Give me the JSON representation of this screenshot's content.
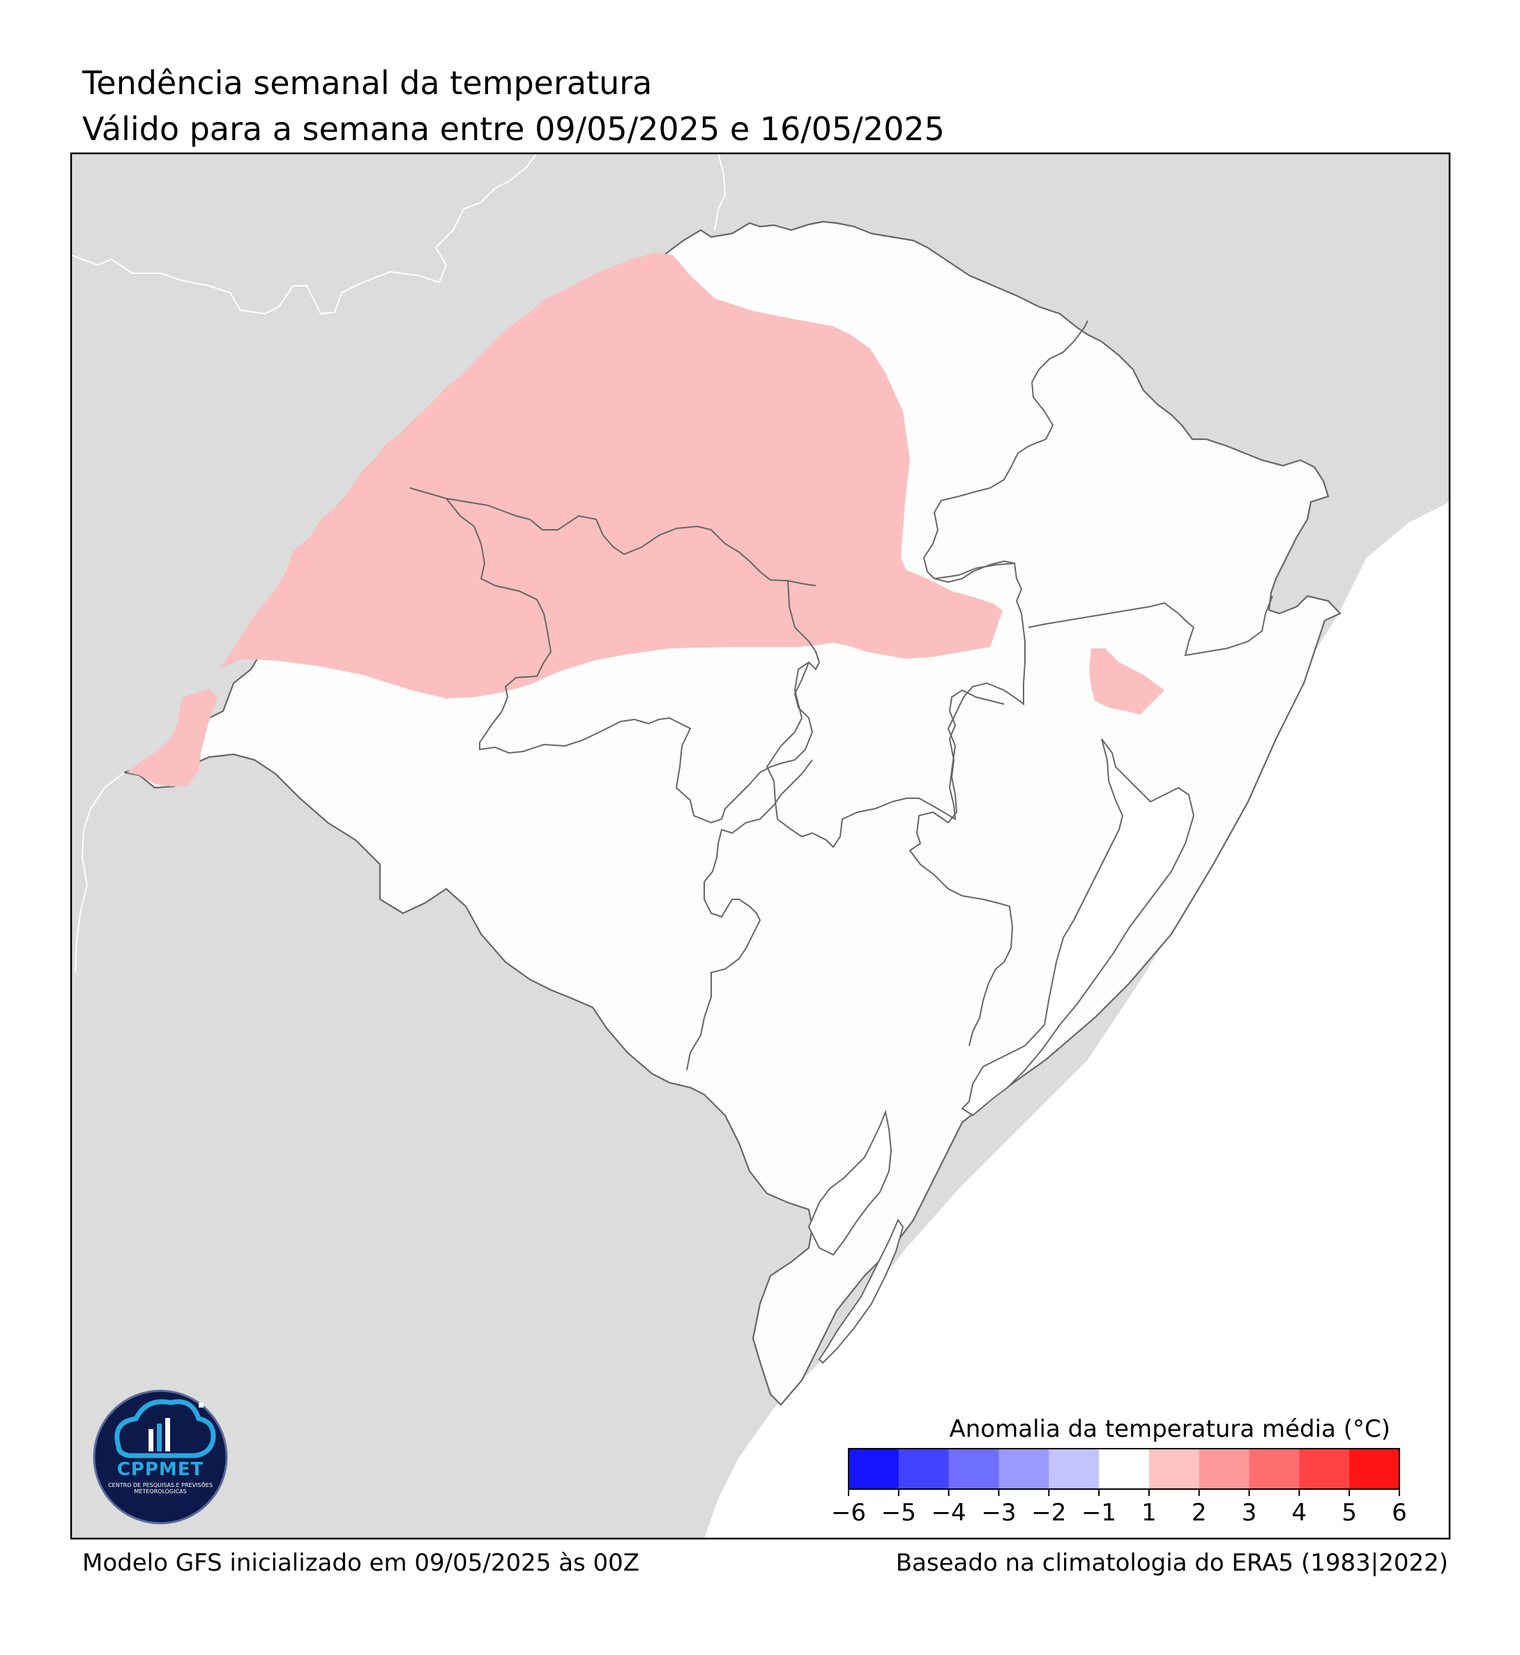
{
  "header": {
    "title": "Tendência semanal da temperatura",
    "subtitle": "Válido para a semana entre 09/05/2025 e 16/05/2025"
  },
  "footer": {
    "left": "Modelo GFS inicializado em 09/05/2025 às 00Z",
    "right": "Baseado na climatologia do ERA5 (1983|2022)"
  },
  "legend": {
    "title": "Anomalia da temperatura média (°C)",
    "ticks": [
      "−6",
      "−5",
      "−4",
      "−3",
      "−2",
      "−1",
      "1",
      "2",
      "3",
      "4",
      "5",
      "6"
    ],
    "colors": [
      "#1414ff",
      "#4343ff",
      "#6e6eff",
      "#9999ff",
      "#c3c3ff",
      "#ffffff",
      "#ffc3c3",
      "#ff9999",
      "#ff6e6e",
      "#ff4343",
      "#ff1414"
    ]
  },
  "map": {
    "region": "Rio Grande do Sul",
    "colors": {
      "land_outside": "#dcdcdc",
      "ocean": "#ffffff",
      "state_fill": "#fdfdfd",
      "anomaly_1_2": "#fbbfbf",
      "boundary": "#666666",
      "country_border": "#ffffff"
    }
  },
  "logo": {
    "name": "CPPMET",
    "subtitle": "CENTRO DE PESQUISAS E PREVISÕES METEOROLÓGICAS"
  }
}
